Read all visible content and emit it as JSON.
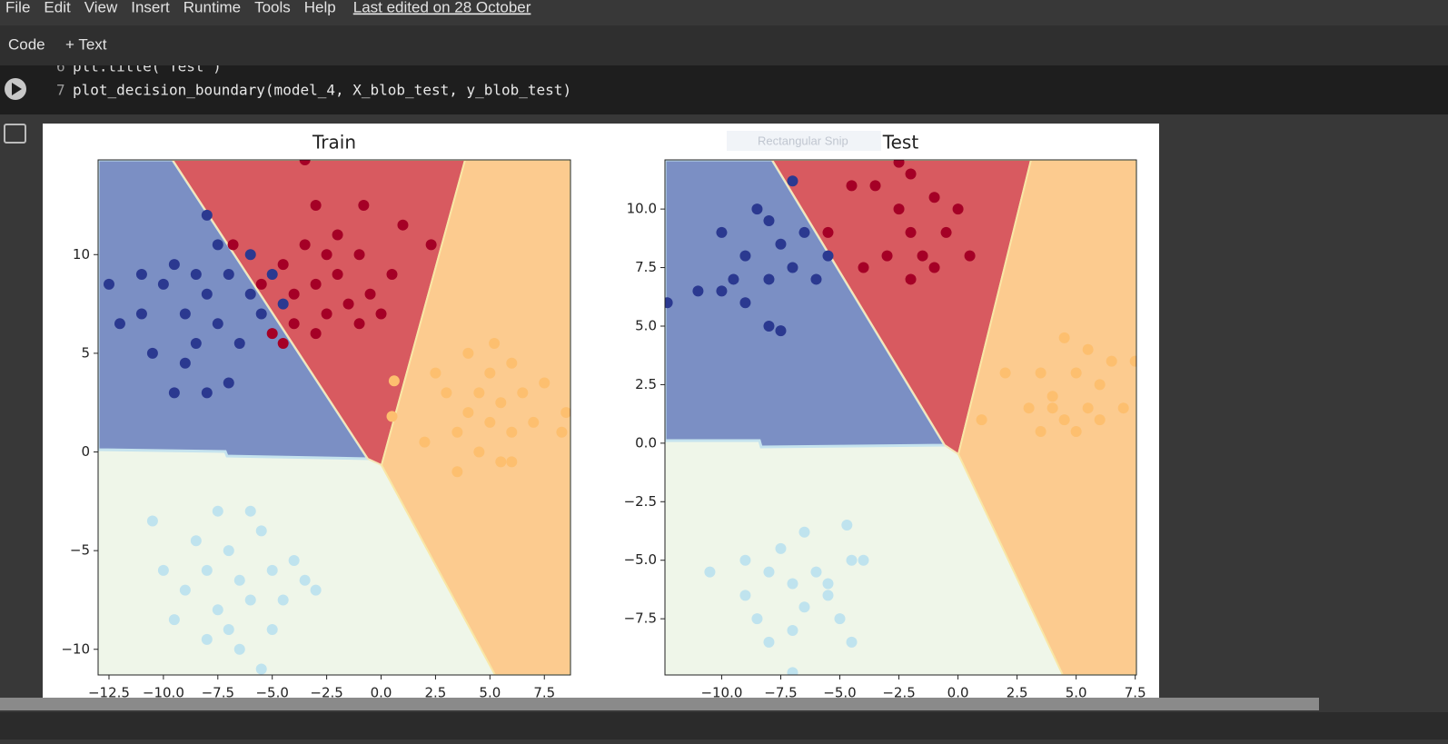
{
  "menu": {
    "items": [
      "File",
      "Edit",
      "View",
      "Insert",
      "Runtime",
      "Tools",
      "Help"
    ],
    "last_edited": "Last edited on 28 October"
  },
  "toolbar": {
    "code": "Code",
    "text": "+ Text"
  },
  "code": [
    {
      "number": "6",
      "text": "plt.title(\"Test\")"
    },
    {
      "number": "7",
      "text": "plot_decision_boundary(model_4, X_blob_test, y_blob_test)"
    }
  ],
  "overlay": "Rectangular Snip",
  "chart_data": [
    {
      "type": "scatter",
      "title": "Train",
      "xlim": [
        -13,
        8.7
      ],
      "ylim": [
        -11.3,
        14.8
      ],
      "xticks": [
        {
          "value": -12.5,
          "label": "−12.5"
        },
        {
          "value": -10,
          "label": "−10.0"
        },
        {
          "value": -7.5,
          "label": "−7.5"
        },
        {
          "value": -5,
          "label": "−5.0"
        },
        {
          "value": -2.5,
          "label": "−2.5"
        },
        {
          "value": 0,
          "label": "0.0"
        },
        2.5,
        {
          "value": 5,
          "label": "5.0"
        },
        7.5
      ],
      "yticks": [
        {
          "value": -10,
          "label": "−10"
        },
        {
          "value": -5,
          "label": "−5"
        },
        0,
        5,
        10
      ],
      "series": [
        {
          "color": "#2b3990",
          "x": [
            -9,
            -8,
            -7.5,
            -10,
            -11,
            -12,
            -9.5,
            -8.5,
            -7,
            -6,
            -5.5,
            -10.5,
            -9,
            -8,
            -7,
            -9.5,
            -12.5,
            -8,
            -6,
            -5,
            -4.5,
            -11,
            -6.5,
            -7.5,
            -8.5
          ],
          "values": [
            7,
            8,
            6.5,
            8.5,
            7,
            6.5,
            9.5,
            5.5,
            9,
            8,
            7,
            5,
            4.5,
            3,
            3.5,
            3,
            8.5,
            12,
            10,
            9,
            7.5,
            9,
            5.5,
            10.5,
            9
          ]
        },
        {
          "color": "#a50026",
          "x": [
            -3,
            -2,
            -4,
            -2.5,
            -1,
            -3.5,
            -1.5,
            -4.5,
            -2,
            -3,
            -0.5,
            0.5,
            1,
            -4,
            -5,
            -1,
            -3,
            -2.5,
            -5.5,
            0,
            -3.5,
            2.3,
            -0.8,
            -6.8,
            -4.5
          ],
          "values": [
            8.5,
            9,
            8,
            7,
            10,
            10.5,
            7.5,
            9.5,
            11,
            12.5,
            8,
            9,
            11.5,
            6.5,
            6,
            6.5,
            6,
            10,
            8.5,
            7,
            14.8,
            10.5,
            12.5,
            10.5,
            5.5
          ]
        },
        {
          "color": "#fdbf6f",
          "x": [
            5,
            4,
            6,
            5.5,
            3.5,
            4.5,
            6.5,
            7,
            3,
            5,
            4,
            6,
            2.5,
            2,
            7.5,
            8.5,
            5.5,
            3.5,
            6,
            4.5,
            0.6,
            0.5,
            8.3,
            5.2
          ],
          "values": [
            1.5,
            2,
            1,
            2.5,
            1,
            0,
            3,
            1.5,
            3,
            4,
            5,
            4.5,
            4,
            0.5,
            3.5,
            2,
            -0.5,
            -1,
            -0.5,
            3,
            3.6,
            1.8,
            1,
            5.5
          ]
        },
        {
          "color": "#bfe3ee",
          "x": [
            -6.5,
            -7,
            -6,
            -5,
            -8,
            -7.5,
            -5.5,
            -6,
            -8.5,
            -4.5,
            -7,
            -9,
            -10,
            -3.5,
            -5,
            -8,
            -6.5,
            -10.5,
            -4,
            -9.5,
            -5.5,
            -3,
            -7.5
          ],
          "values": [
            -6.5,
            -5,
            -7.5,
            -6,
            -6,
            -8,
            -4,
            -3,
            -4.5,
            -7.5,
            -9,
            -7,
            -6,
            -6.5,
            -9,
            -9.5,
            -10,
            -3.5,
            -5.5,
            -8.5,
            -11,
            -7,
            -3
          ]
        }
      ]
    },
    {
      "type": "scatter",
      "title": "Test",
      "xlim": [
        -12.4,
        7.55
      ],
      "ylim": [
        -9.9,
        12.1
      ],
      "xticks": [
        {
          "value": -10,
          "label": "−10.0"
        },
        {
          "value": -7.5,
          "label": "−7.5"
        },
        {
          "value": -5,
          "label": "−5.0"
        },
        {
          "value": -2.5,
          "label": "−2.5"
        },
        {
          "value": 0,
          "label": "0.0"
        },
        2.5,
        {
          "value": 5,
          "label": "5.0"
        },
        7.5
      ],
      "yticks": [
        {
          "value": -7.5,
          "label": "−7.5"
        },
        {
          "value": -5,
          "label": "−5.0"
        },
        {
          "value": -2.5,
          "label": "−2.5"
        },
        {
          "value": 0,
          "label": "0.0"
        },
        2.5,
        {
          "value": 5,
          "label": "5.0"
        },
        7.5,
        {
          "value": 10,
          "label": "10.0"
        }
      ],
      "series": [
        {
          "color": "#2b3990",
          "x": [
            -8,
            -9,
            -7,
            -10,
            -8.5,
            -7.5,
            -9,
            -8,
            -11,
            -12.3,
            -6,
            -5.5,
            -6.5,
            -9.5,
            -7.5,
            -7,
            -10,
            -8
          ],
          "values": [
            7,
            8,
            7.5,
            9,
            10,
            8.5,
            6,
            5,
            6.5,
            6,
            7,
            8,
            9,
            7,
            4.8,
            11.2,
            6.5,
            9.5
          ]
        },
        {
          "color": "#a50026",
          "x": [
            -2,
            -3,
            -1.5,
            -2.5,
            -1,
            -4,
            -3.5,
            -0.5,
            0.5,
            -2,
            -4.5,
            -5.5,
            -2.5,
            -1,
            -2,
            0
          ],
          "values": [
            9,
            8,
            8,
            10,
            10.5,
            7.5,
            11,
            9,
            8,
            7,
            11,
            9,
            12,
            7.5,
            11.5,
            10
          ]
        },
        {
          "color": "#fdbf6f",
          "x": [
            5,
            4,
            6,
            4.5,
            3.5,
            5.5,
            6,
            4.5,
            3,
            7,
            2,
            5,
            3.5,
            1,
            7.5,
            6.5,
            4,
            5.5
          ],
          "values": [
            3,
            2,
            2.5,
            1,
            3,
            4,
            1,
            4.5,
            1.5,
            1.5,
            3,
            0.5,
            0.5,
            1,
            3.5,
            3.5,
            1.5,
            1.5
          ]
        },
        {
          "color": "#bfe3ee",
          "x": [
            -7,
            -8,
            -6.5,
            -5.5,
            -9,
            -7.5,
            -6,
            -8.5,
            -7,
            -5,
            -4.5,
            -10.5,
            -4,
            -9,
            -6.5,
            -4.7,
            -7,
            -5.5,
            -8,
            -4.5
          ],
          "values": [
            -6,
            -5.5,
            -7,
            -6,
            -6.5,
            -4.5,
            -5.5,
            -7.5,
            -8,
            -7.5,
            -5,
            -5.5,
            -5,
            -5,
            -3.8,
            -3.5,
            -9.8,
            -6.5,
            -8.5,
            -8.5
          ]
        }
      ]
    }
  ]
}
